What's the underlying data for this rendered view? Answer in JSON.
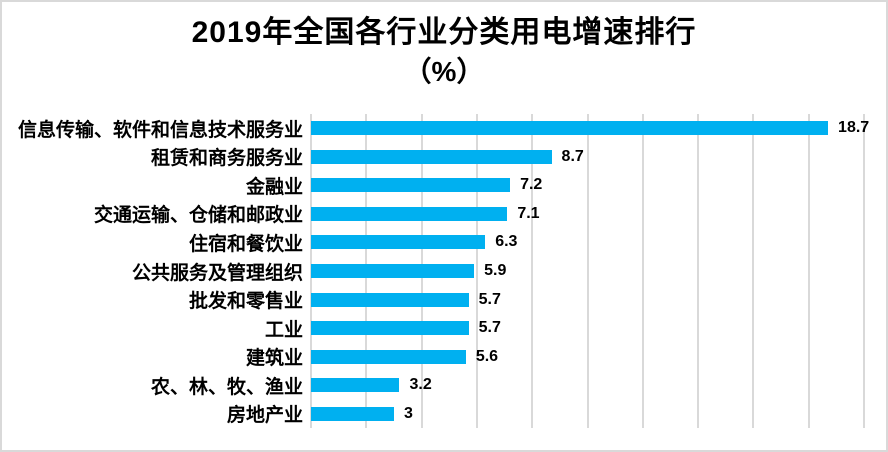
{
  "chart": {
    "title_line1": "2019年全国各行业分类用电增速排行",
    "title_line2": "（%）",
    "bar_color": "#00b0f0",
    "gridline_color": "#d9d9d9",
    "border_color": "#d9d9d9",
    "text_color": "#000000"
  },
  "chart_data": {
    "type": "bar",
    "orientation": "horizontal",
    "title": "2019年全国各行业分类用电增速排行（%）",
    "xlabel": "",
    "ylabel": "",
    "categories": [
      "信息传输、软件和信息技术服务业",
      "租赁和商务服务业",
      "金融业",
      "交通运输、仓储和邮政业",
      "住宿和餐饮业",
      "公共服务及管理组织",
      "批发和零售业",
      "工业",
      "建筑业",
      "农、林、牧、渔业",
      "房地产业"
    ],
    "values": [
      18.7,
      8.7,
      7.2,
      7.1,
      6.3,
      5.9,
      5.7,
      5.7,
      5.6,
      3.2,
      3
    ],
    "value_labels": [
      "18.7",
      "8.7",
      "7.2",
      "7.1",
      "6.3",
      "5.9",
      "5.7",
      "5.7",
      "5.6",
      "3.2",
      "3"
    ],
    "xlim": [
      0,
      20
    ],
    "grid_step": 2,
    "grid": true,
    "legend": false,
    "data_labels": true,
    "axis_tick_labels": false
  }
}
